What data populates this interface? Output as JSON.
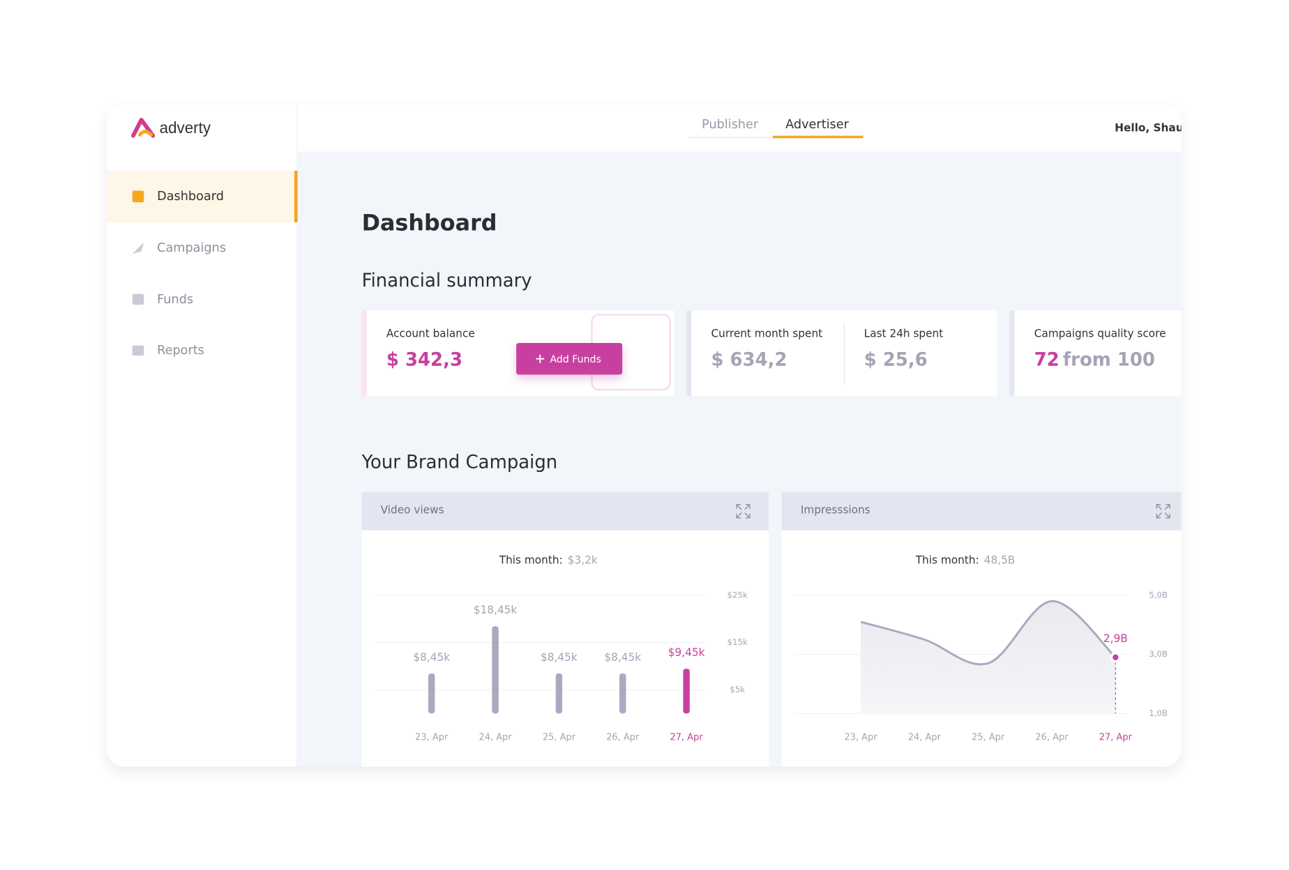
{
  "brand": "adverty",
  "tabs": [
    "Publisher",
    "Advertiser"
  ],
  "greeting": "Hello, Shaun",
  "nav": [
    "Dashboard",
    "Campaigns",
    "Funds",
    "Reports"
  ],
  "page_title": "Dashboard",
  "financial": {
    "title": "Financial summary",
    "account_balance": {
      "label": "Account balance",
      "value": "$ 342,3",
      "button": "Add Funds"
    },
    "current_month": {
      "label": "Current month spent",
      "value": "$ 634,2"
    },
    "last_24h": {
      "label": "Last 24h spent",
      "value": "$ 25,6"
    },
    "quality": {
      "label": "Campaigns quality score",
      "value": "72",
      "suffix": "from 100"
    }
  },
  "campaign_title": "Your Brand Campaign",
  "chart_data": [
    {
      "type": "bar",
      "title": "Video views",
      "subtitle": "This month:",
      "total": "$3,2k",
      "categories": [
        "23, Apr",
        "24, Apr",
        "25, Apr",
        "26, Apr",
        "27, Apr"
      ],
      "values": [
        8450,
        18450,
        8450,
        8450,
        9450
      ],
      "value_labels": [
        "$8,45k",
        "$18,45k",
        "$8,45k",
        "$8,45k",
        "$9,45k"
      ],
      "color": "#a9aac0",
      "highlight_color": "#c8409f",
      "ylim": [
        0,
        25000
      ],
      "yticks": [
        {
          "value": 25000,
          "label": "$25k"
        },
        {
          "value": 15000,
          "label": "$15k"
        },
        {
          "value": 5000,
          "label": "$5k"
        }
      ],
      "grid": true
    },
    {
      "type": "line",
      "title": "Impresssions",
      "subtitle": "This month:",
      "total": "48,5B",
      "categories": [
        "23, Apr",
        "24, Apr",
        "25, Apr",
        "26, Apr",
        "27, Apr"
      ],
      "values": [
        4.1,
        3.5,
        2.7,
        4.8,
        2.9
      ],
      "value_labels": [
        null,
        null,
        null,
        null,
        "2,9B"
      ],
      "color": "#a9aac0",
      "highlight_color": "#c8409f",
      "ylim": [
        1,
        5
      ],
      "yticks": [
        {
          "value": 5,
          "label": "5,0B"
        },
        {
          "value": 3,
          "label": "3,0B"
        },
        {
          "value": 1,
          "label": "1,0B"
        }
      ],
      "grid": true
    }
  ]
}
